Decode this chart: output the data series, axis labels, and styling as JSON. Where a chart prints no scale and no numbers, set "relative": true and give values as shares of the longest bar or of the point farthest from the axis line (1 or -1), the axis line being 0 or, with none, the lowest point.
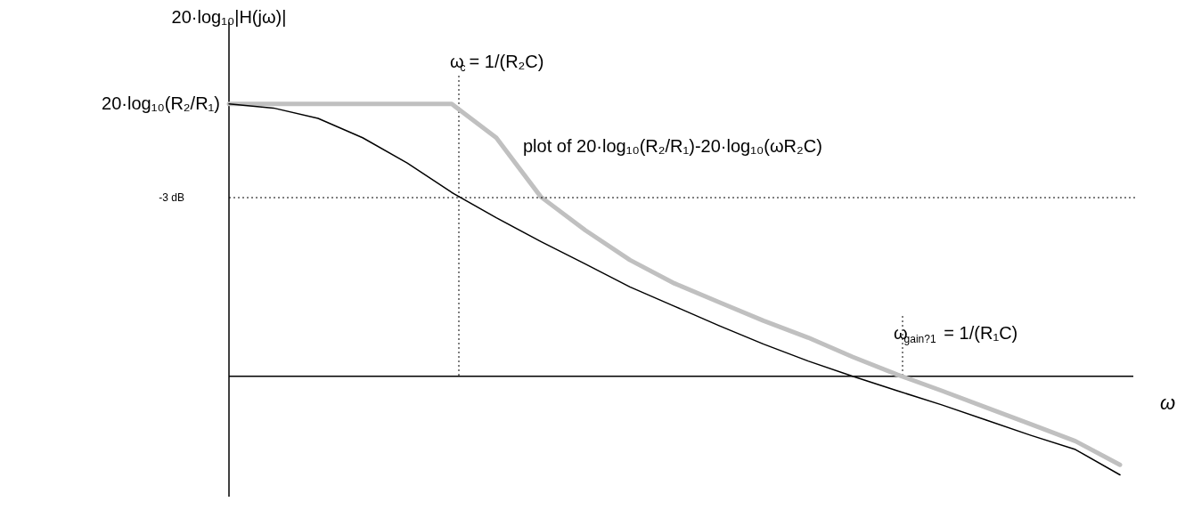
{
  "chart_data": {
    "type": "line",
    "relative": true,
    "tick_labels": false,
    "ylabel": "20·log₁₀|H(jω)|",
    "xlabel": "ω",
    "categories": [
      null,
      null,
      null,
      null,
      null,
      null,
      null,
      null,
      null,
      null,
      null,
      null,
      null,
      null,
      null,
      null,
      null,
      null,
      null,
      null,
      null
    ],
    "series": [
      {
        "color": "#c0c0c0",
        "values": [
          1.0,
          1.0,
          1.0,
          1.0,
          1.0,
          1.0,
          0.876,
          0.659,
          0.536,
          0.427,
          0.341,
          0.272,
          0.204,
          0.142,
          0.071,
          0.006,
          -0.053,
          -0.115,
          -0.176,
          -0.238,
          -0.325
        ]
      },
      {
        "color": "#000000",
        "values": [
          1.0,
          0.985,
          0.947,
          0.876,
          0.783,
          0.675,
          0.582,
          0.495,
          0.412,
          0.328,
          0.257,
          0.186,
          0.118,
          0.056,
          0.0,
          -0.053,
          -0.105,
          -0.161,
          -0.217,
          -0.269,
          -0.362
        ]
      }
    ],
    "ref_lines": [
      {
        "axis": "y",
        "value": 0.656,
        "label": "-3 dB",
        "line_style": "dotted"
      }
    ],
    "annotations": [
      "20·log₁₀(R₂/R₁)",
      "plot of 20·log₁₀(R₂/R₁)-20·log₁₀(ωR₂C)",
      "ω$_{c}$ = 1/(R₂C)",
      "ω$_{gain?1}$ = 1/(R₁C)"
    ]
  }
}
